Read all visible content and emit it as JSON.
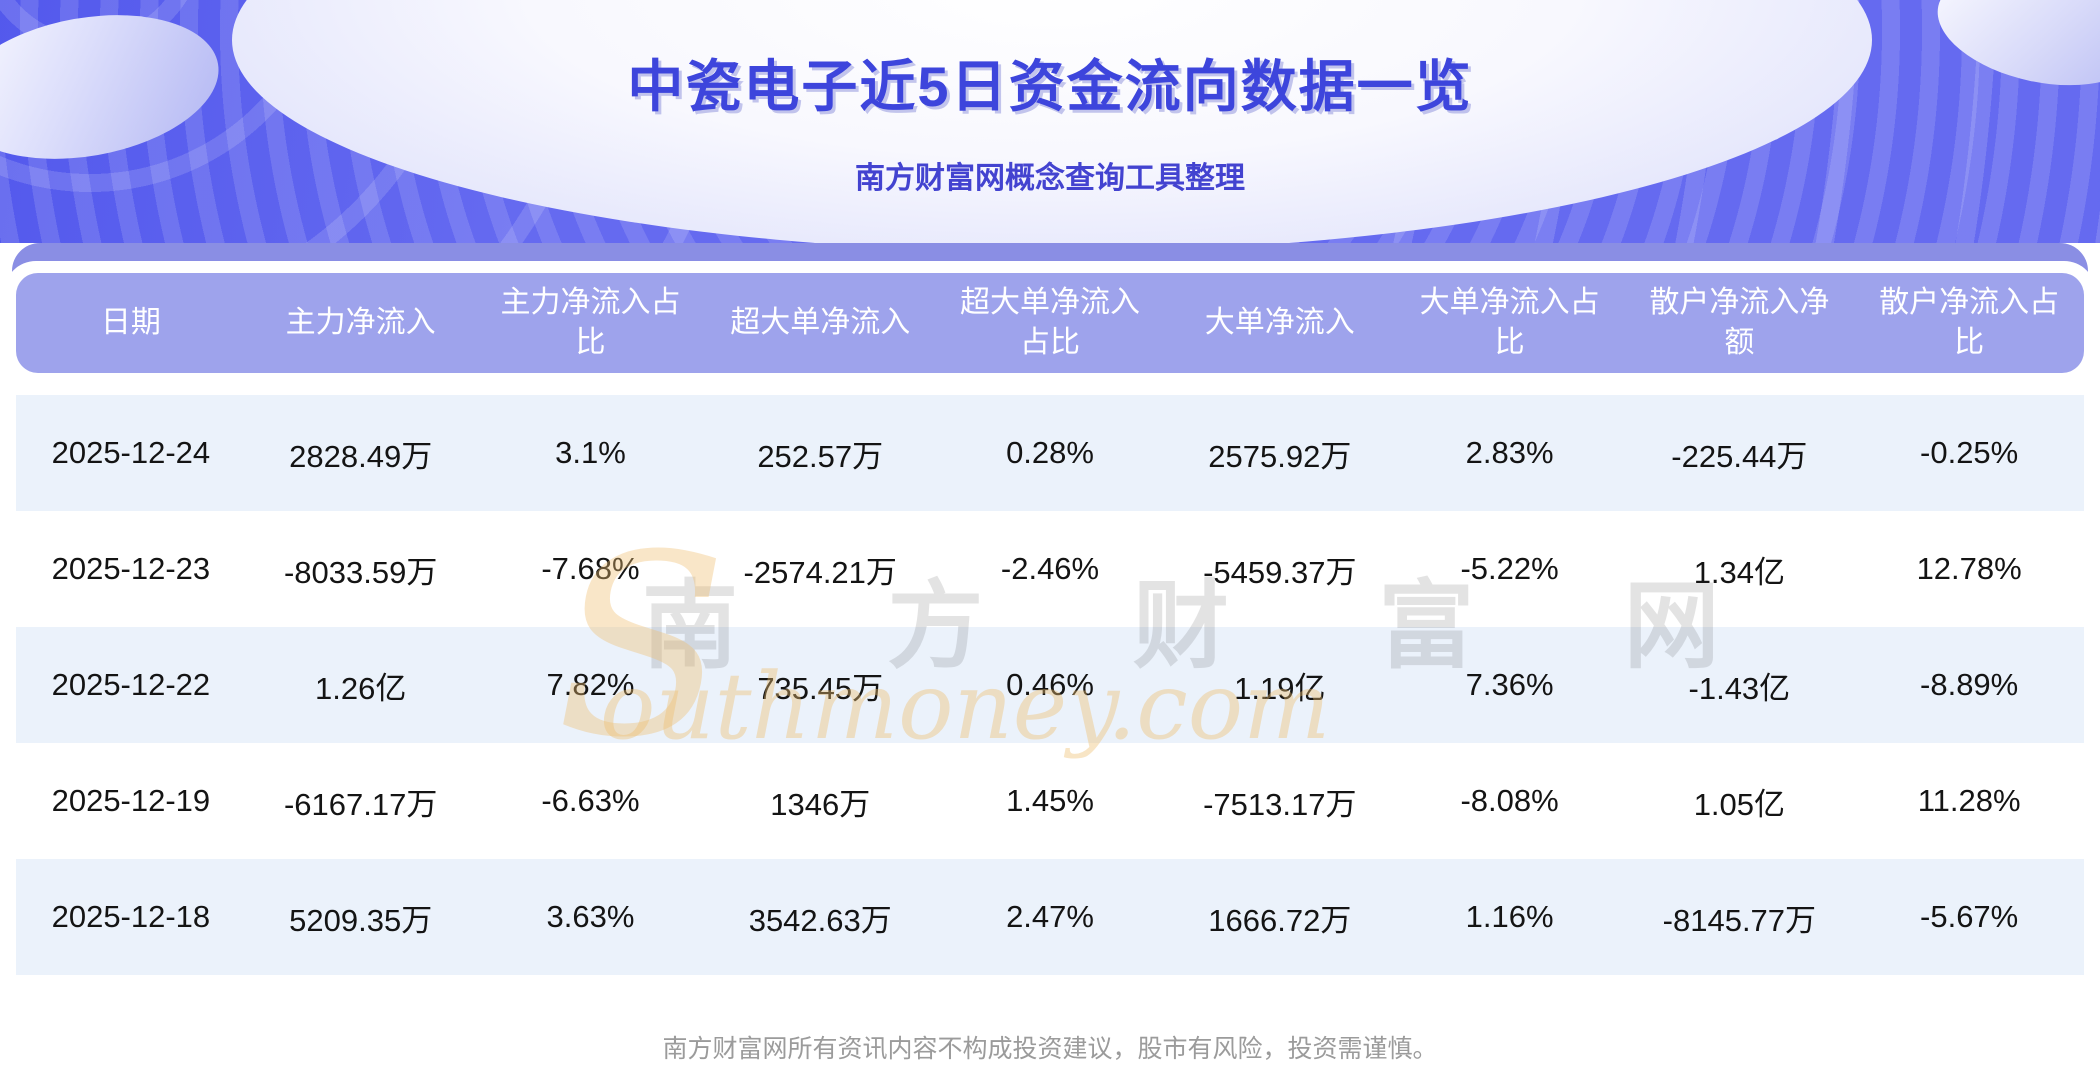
{
  "page": {
    "title": "中瓷电子近5日资金流向数据一览",
    "subtitle": "南方财富网概念查询工具整理",
    "disclaimer": "南方财富网所有资讯内容不构成投资建议，股市有风险，投资需谨慎。"
  },
  "watermark": {
    "initial": "S",
    "cn": "南 方 财 富 网",
    "en": "outhmoney.com"
  },
  "colors": {
    "hero_bg": "#656af0",
    "outer_band": "#8a8ee4",
    "header_band": "#9ea3ec",
    "row_alt": "#ebf2fb",
    "title_text": "#3d45dc",
    "subtitle_text": "#4343d0",
    "cell_text": "#141414",
    "disclaimer_text": "#9b9b9b",
    "watermark_tan": "#eebe6e"
  },
  "chart_data": {
    "type": "table",
    "title": "中瓷电子近5日资金流向数据一览",
    "columns": [
      "日期",
      "主力净流入",
      "主力净流入占比",
      "超大单净流入",
      "超大单净流入占比",
      "大单净流入",
      "大单净流入占比",
      "散户净流入净额",
      "散户净流入占比"
    ],
    "rows": [
      {
        "cells": [
          "2025-12-24",
          "2828.49万",
          "3.1%",
          "252.57万",
          "0.28%",
          "2575.92万",
          "2.83%",
          "-225.44万",
          "-0.25%"
        ]
      },
      {
        "cells": [
          "2025-12-23",
          "-8033.59万",
          "-7.68%",
          "-2574.21万",
          "-2.46%",
          "-5459.37万",
          "-5.22%",
          "1.34亿",
          "12.78%"
        ]
      },
      {
        "cells": [
          "2025-12-22",
          "1.26亿",
          "7.82%",
          "735.45万",
          "0.46%",
          "1.19亿",
          "7.36%",
          "-1.43亿",
          "-8.89%"
        ]
      },
      {
        "cells": [
          "2025-12-19",
          "-6167.17万",
          "-6.63%",
          "1346万",
          "1.45%",
          "-7513.17万",
          "-8.08%",
          "1.05亿",
          "11.28%"
        ]
      },
      {
        "cells": [
          "2025-12-18",
          "5209.35万",
          "3.63%",
          "3542.63万",
          "2.47%",
          "1666.72万",
          "1.16%",
          "-8145.77万",
          "-5.67%"
        ]
      }
    ]
  }
}
